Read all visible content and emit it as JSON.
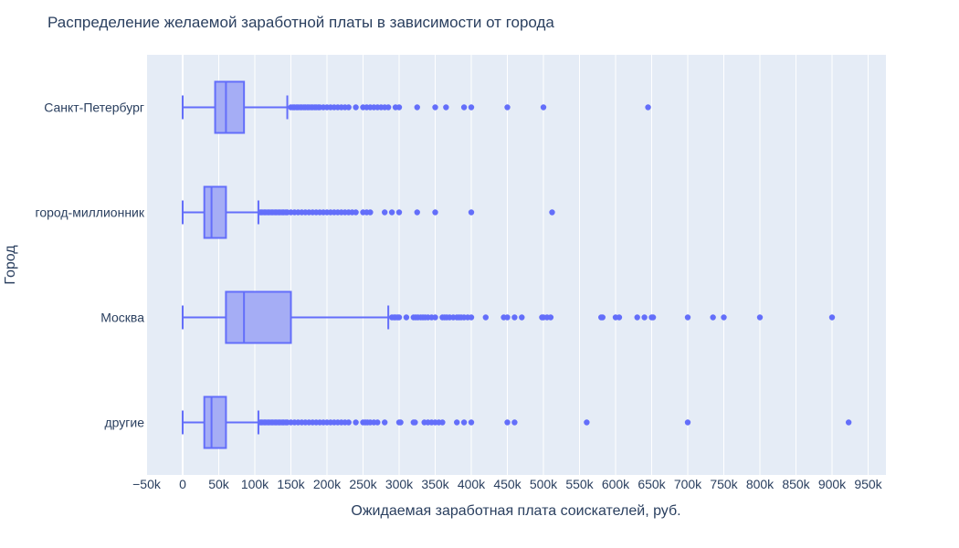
{
  "chart_data": {
    "type": "box",
    "orientation": "horizontal",
    "title": "Распределение желаемой заработной платы в зависимости от города",
    "xlabel": "Ожидаемая заработная плата соискателей, руб.",
    "ylabel": "Город",
    "xlim": [
      -50000,
      970000
    ],
    "x_ticks": [
      -50000,
      0,
      50000,
      100000,
      150000,
      200000,
      250000,
      300000,
      350000,
      400000,
      450000,
      500000,
      550000,
      600000,
      650000,
      700000,
      750000,
      800000,
      850000,
      900000,
      950000
    ],
    "x_tick_labels": [
      "−50k",
      "0",
      "50k",
      "100k",
      "150k",
      "200k",
      "250k",
      "300k",
      "350k",
      "400k",
      "450k",
      "500k",
      "550k",
      "600k",
      "650k",
      "700k",
      "750k",
      "800k",
      "850k",
      "900k",
      "950k"
    ],
    "grid": true,
    "colors": {
      "box_fill": "#a5adf5",
      "box_line": "#636efa",
      "plot_bg": "#e5ecf6",
      "grid": "#ffffff"
    },
    "categories": [
      "Санкт-Петербург",
      "город-миллионник",
      "Москва",
      "другие"
    ],
    "boxes": [
      {
        "name": "Санкт-Петербург",
        "min": 0,
        "q1": 45000,
        "median": 60000,
        "q3": 85000,
        "upper_fence": 145000,
        "outliers": [
          150000,
          153000,
          155000,
          158000,
          160000,
          163000,
          165000,
          168000,
          170000,
          173000,
          175000,
          178000,
          180000,
          183000,
          185000,
          188000,
          190000,
          195000,
          200000,
          205000,
          210000,
          215000,
          220000,
          225000,
          230000,
          240000,
          250000,
          255000,
          260000,
          265000,
          270000,
          275000,
          280000,
          285000,
          295000,
          300000,
          325000,
          350000,
          365000,
          390000,
          400000,
          450000,
          500000,
          645000
        ]
      },
      {
        "name": "город-миллионник",
        "min": 0,
        "q1": 30000,
        "median": 40000,
        "q3": 60000,
        "upper_fence": 105000,
        "outliers": [
          108000,
          110000,
          113000,
          115000,
          118000,
          120000,
          123000,
          125000,
          128000,
          130000,
          133000,
          135000,
          138000,
          140000,
          143000,
          145000,
          150000,
          155000,
          160000,
          165000,
          170000,
          175000,
          180000,
          185000,
          190000,
          195000,
          200000,
          205000,
          210000,
          215000,
          220000,
          225000,
          230000,
          235000,
          240000,
          250000,
          255000,
          260000,
          280000,
          290000,
          300000,
          325000,
          350000,
          400000,
          512000
        ]
      },
      {
        "name": "Москва",
        "min": 0,
        "q1": 60000,
        "median": 85000,
        "q3": 150000,
        "upper_fence": 285000,
        "outliers": [
          290000,
          293000,
          295000,
          298000,
          300000,
          310000,
          320000,
          323000,
          326000,
          330000,
          333000,
          336000,
          340000,
          345000,
          350000,
          360000,
          363000,
          366000,
          370000,
          375000,
          380000,
          383000,
          386000,
          390000,
          395000,
          400000,
          420000,
          445000,
          450000,
          460000,
          470000,
          498000,
          500000,
          505000,
          510000,
          580000,
          582000,
          600000,
          605000,
          630000,
          640000,
          650000,
          652000,
          700000,
          735000,
          750000,
          800000,
          900000
        ]
      },
      {
        "name": "другие",
        "min": 0,
        "q1": 30000,
        "median": 40000,
        "q3": 60000,
        "upper_fence": 105000,
        "outliers": [
          108000,
          110000,
          113000,
          115000,
          118000,
          120000,
          123000,
          125000,
          128000,
          130000,
          133000,
          135000,
          138000,
          140000,
          143000,
          145000,
          150000,
          155000,
          160000,
          165000,
          170000,
          175000,
          180000,
          185000,
          190000,
          195000,
          200000,
          205000,
          210000,
          215000,
          220000,
          225000,
          230000,
          240000,
          250000,
          253000,
          256000,
          260000,
          265000,
          270000,
          280000,
          300000,
          302000,
          320000,
          322000,
          335000,
          340000,
          345000,
          350000,
          355000,
          360000,
          380000,
          390000,
          400000,
          450000,
          460000,
          560000,
          700000,
          923000
        ]
      }
    ]
  }
}
